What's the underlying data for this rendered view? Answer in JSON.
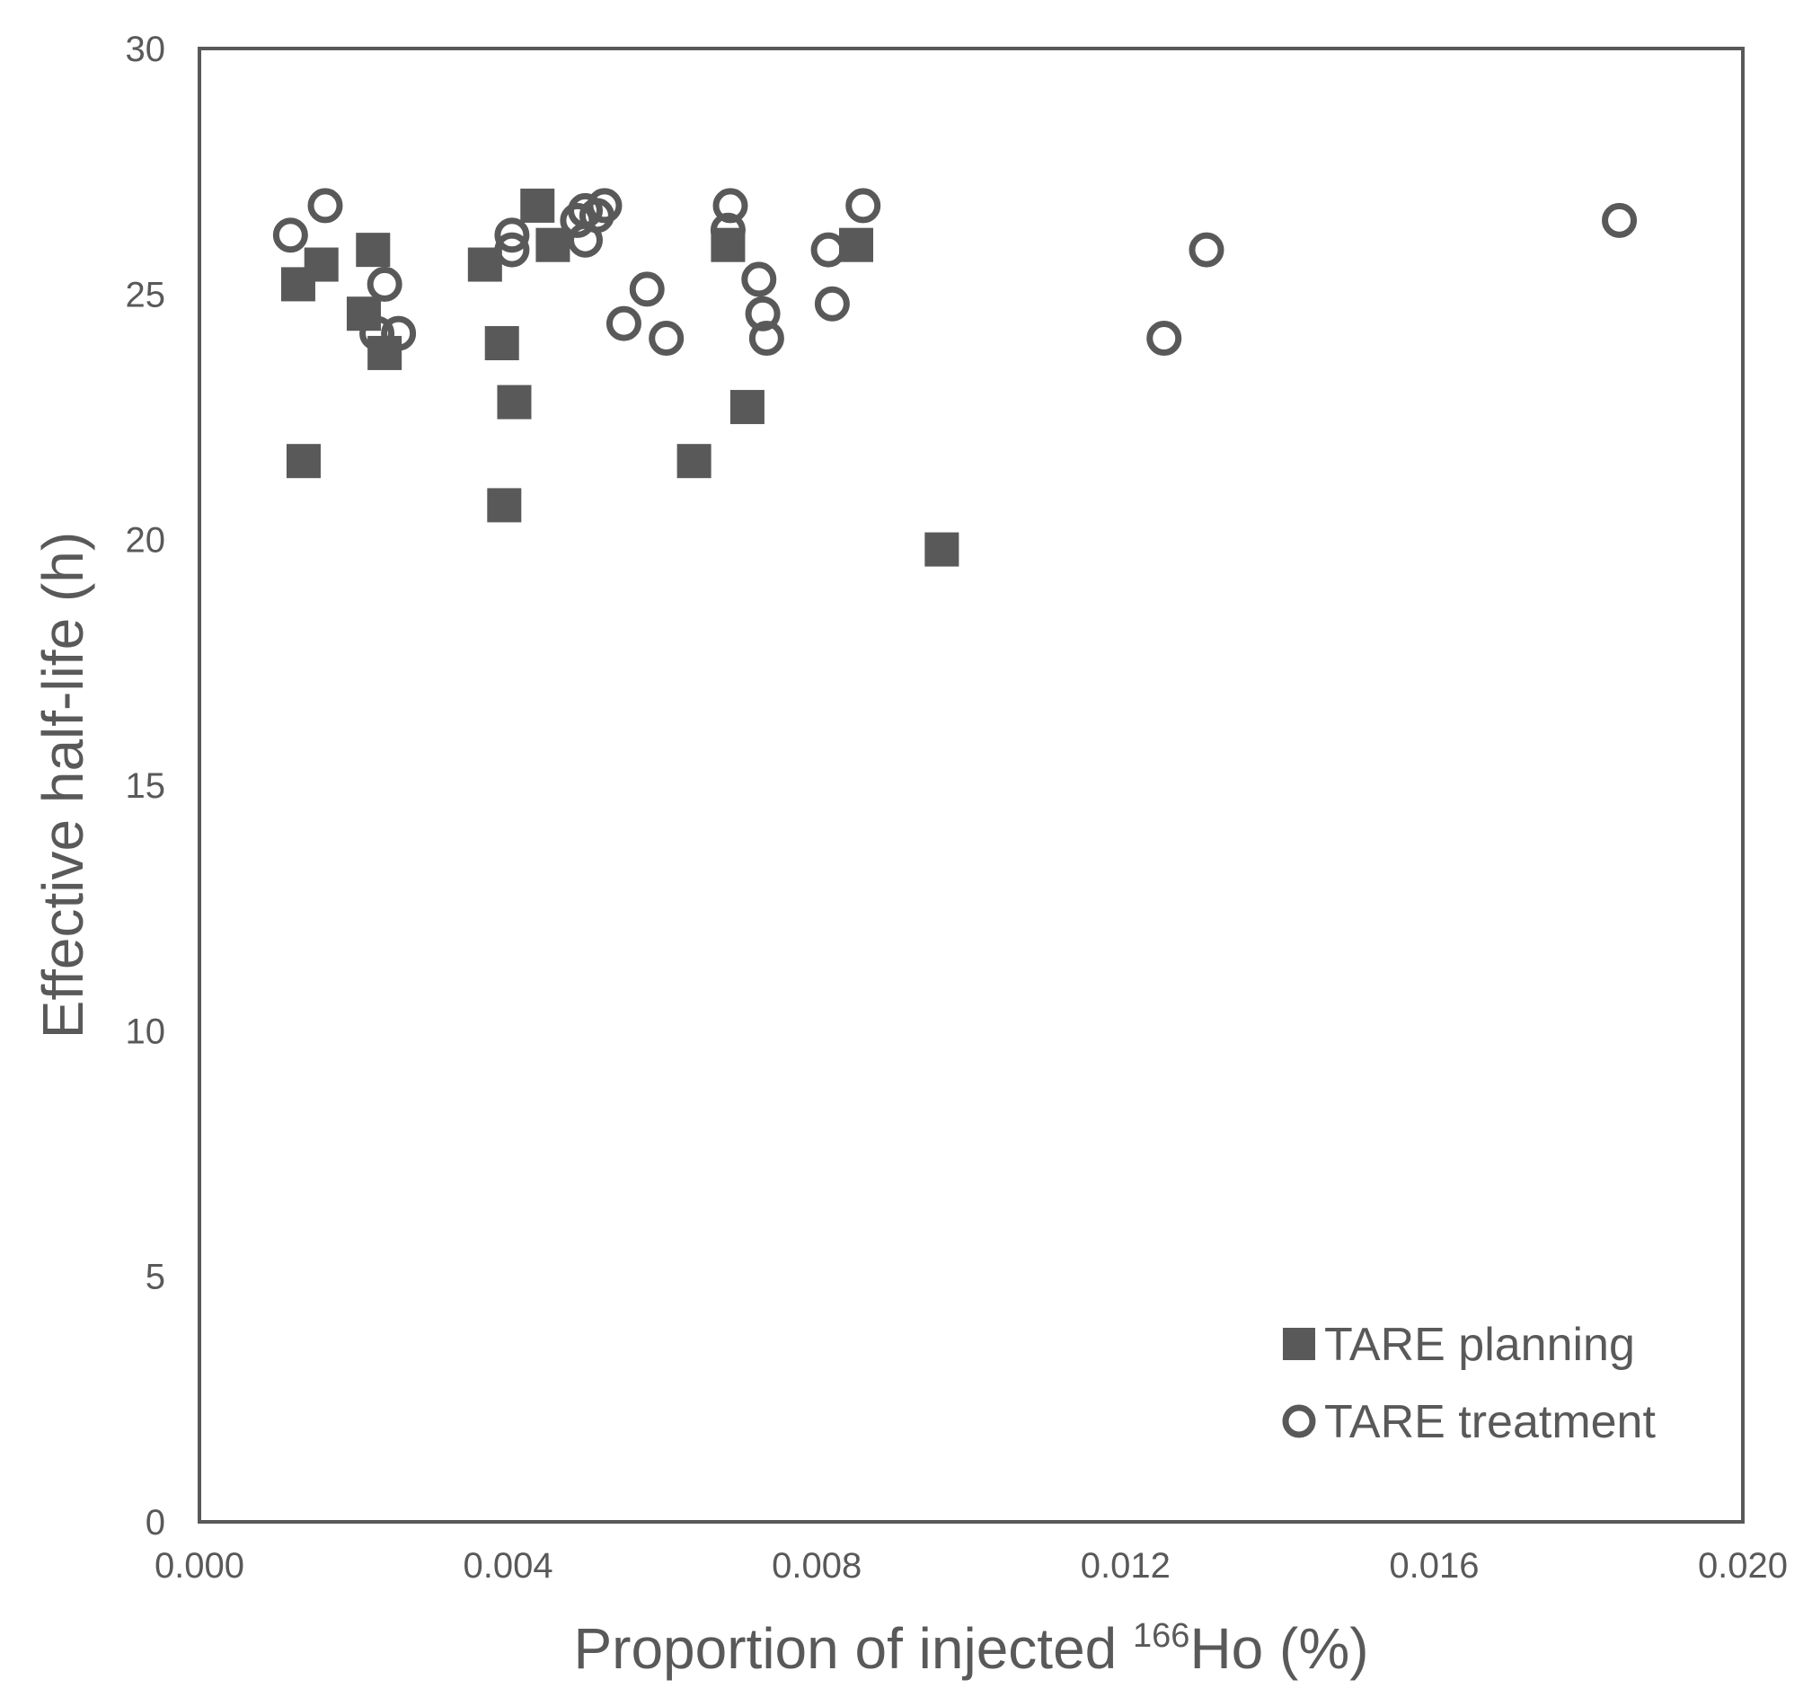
{
  "chart_data": {
    "type": "scatter",
    "title": "",
    "xlabel": {
      "prefix": "Proportion of injected ",
      "superscript": "166",
      "suffix": "Ho (%)"
    },
    "ylabel": "Effective half-life (h)",
    "xlim": [
      0,
      0.02
    ],
    "ylim": [
      0,
      30
    ],
    "x_ticks": [
      0,
      0.004,
      0.008,
      0.012,
      0.016,
      0.02
    ],
    "x_tick_labels": [
      "0.000",
      "0.004",
      "0.008",
      "0.012",
      "0.016",
      "0.020"
    ],
    "y_ticks": [
      0,
      5,
      10,
      15,
      20,
      25,
      30
    ],
    "y_tick_labels": [
      "0",
      "5",
      "10",
      "15",
      "20",
      "25",
      "30"
    ],
    "grid": false,
    "legend_position": "bottom-right",
    "series": [
      {
        "name": "TARE planning",
        "marker": "filled-square",
        "color": "#595959",
        "x": [
          0.00128,
          0.00135,
          0.00158,
          0.00213,
          0.00225,
          0.0024,
          0.0037,
          0.00392,
          0.00395,
          0.00408,
          0.00438,
          0.00458,
          0.00641,
          0.00685,
          0.0071,
          0.00851,
          0.00962
        ],
        "y": [
          25.2,
          21.6,
          25.6,
          24.6,
          25.9,
          23.8,
          25.6,
          24.0,
          20.7,
          22.8,
          26.8,
          26.0,
          21.6,
          26.0,
          22.7,
          26.0,
          19.8
        ]
      },
      {
        "name": "TARE treatment",
        "marker": "open-circle",
        "color": "#595959",
        "x": [
          0.00118,
          0.00163,
          0.0023,
          0.0024,
          0.00258,
          0.00405,
          0.00405,
          0.0049,
          0.005,
          0.005,
          0.00515,
          0.00525,
          0.0055,
          0.0058,
          0.00605,
          0.00685,
          0.00688,
          0.00725,
          0.0073,
          0.00735,
          0.00815,
          0.0082,
          0.0086,
          0.0125,
          0.01305,
          0.0184
        ],
        "y": [
          26.2,
          26.8,
          24.2,
          25.2,
          24.2,
          25.9,
          26.2,
          26.5,
          26.1,
          26.7,
          26.6,
          26.8,
          24.4,
          25.1,
          24.1,
          26.3,
          26.8,
          25.3,
          24.6,
          24.1,
          25.9,
          24.8,
          26.8,
          24.1,
          25.9,
          26.5
        ]
      }
    ]
  }
}
